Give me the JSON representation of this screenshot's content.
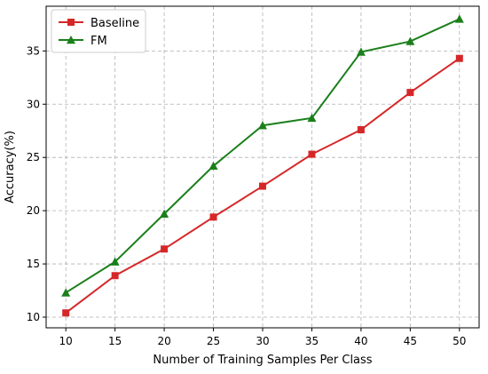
{
  "chart_data": {
    "type": "line",
    "title": "",
    "xlabel": "Number of Training Samples Per Class",
    "ylabel": "Accuracy(%)",
    "x": [
      10,
      15,
      20,
      25,
      30,
      35,
      40,
      45,
      50
    ],
    "xticks": [
      10,
      15,
      20,
      25,
      30,
      35,
      40,
      45,
      50
    ],
    "yticks": [
      10,
      15,
      20,
      25,
      30,
      35
    ],
    "xlim": [
      8,
      52
    ],
    "ylim": [
      9.0,
      39.2
    ],
    "grid": true,
    "grid_style": "dashed",
    "legend_position": "top-left",
    "series": [
      {
        "name": "Baseline",
        "color": "#d62728",
        "marker": "square",
        "values": [
          10.4,
          13.9,
          16.4,
          19.4,
          22.3,
          25.3,
          27.6,
          31.1,
          34.3
        ]
      },
      {
        "name": "FM",
        "color": "#1a7f1a",
        "marker": "triangle-up",
        "values": [
          12.3,
          15.2,
          19.7,
          24.2,
          28.0,
          28.7,
          34.9,
          35.9,
          38.0
        ]
      }
    ]
  }
}
